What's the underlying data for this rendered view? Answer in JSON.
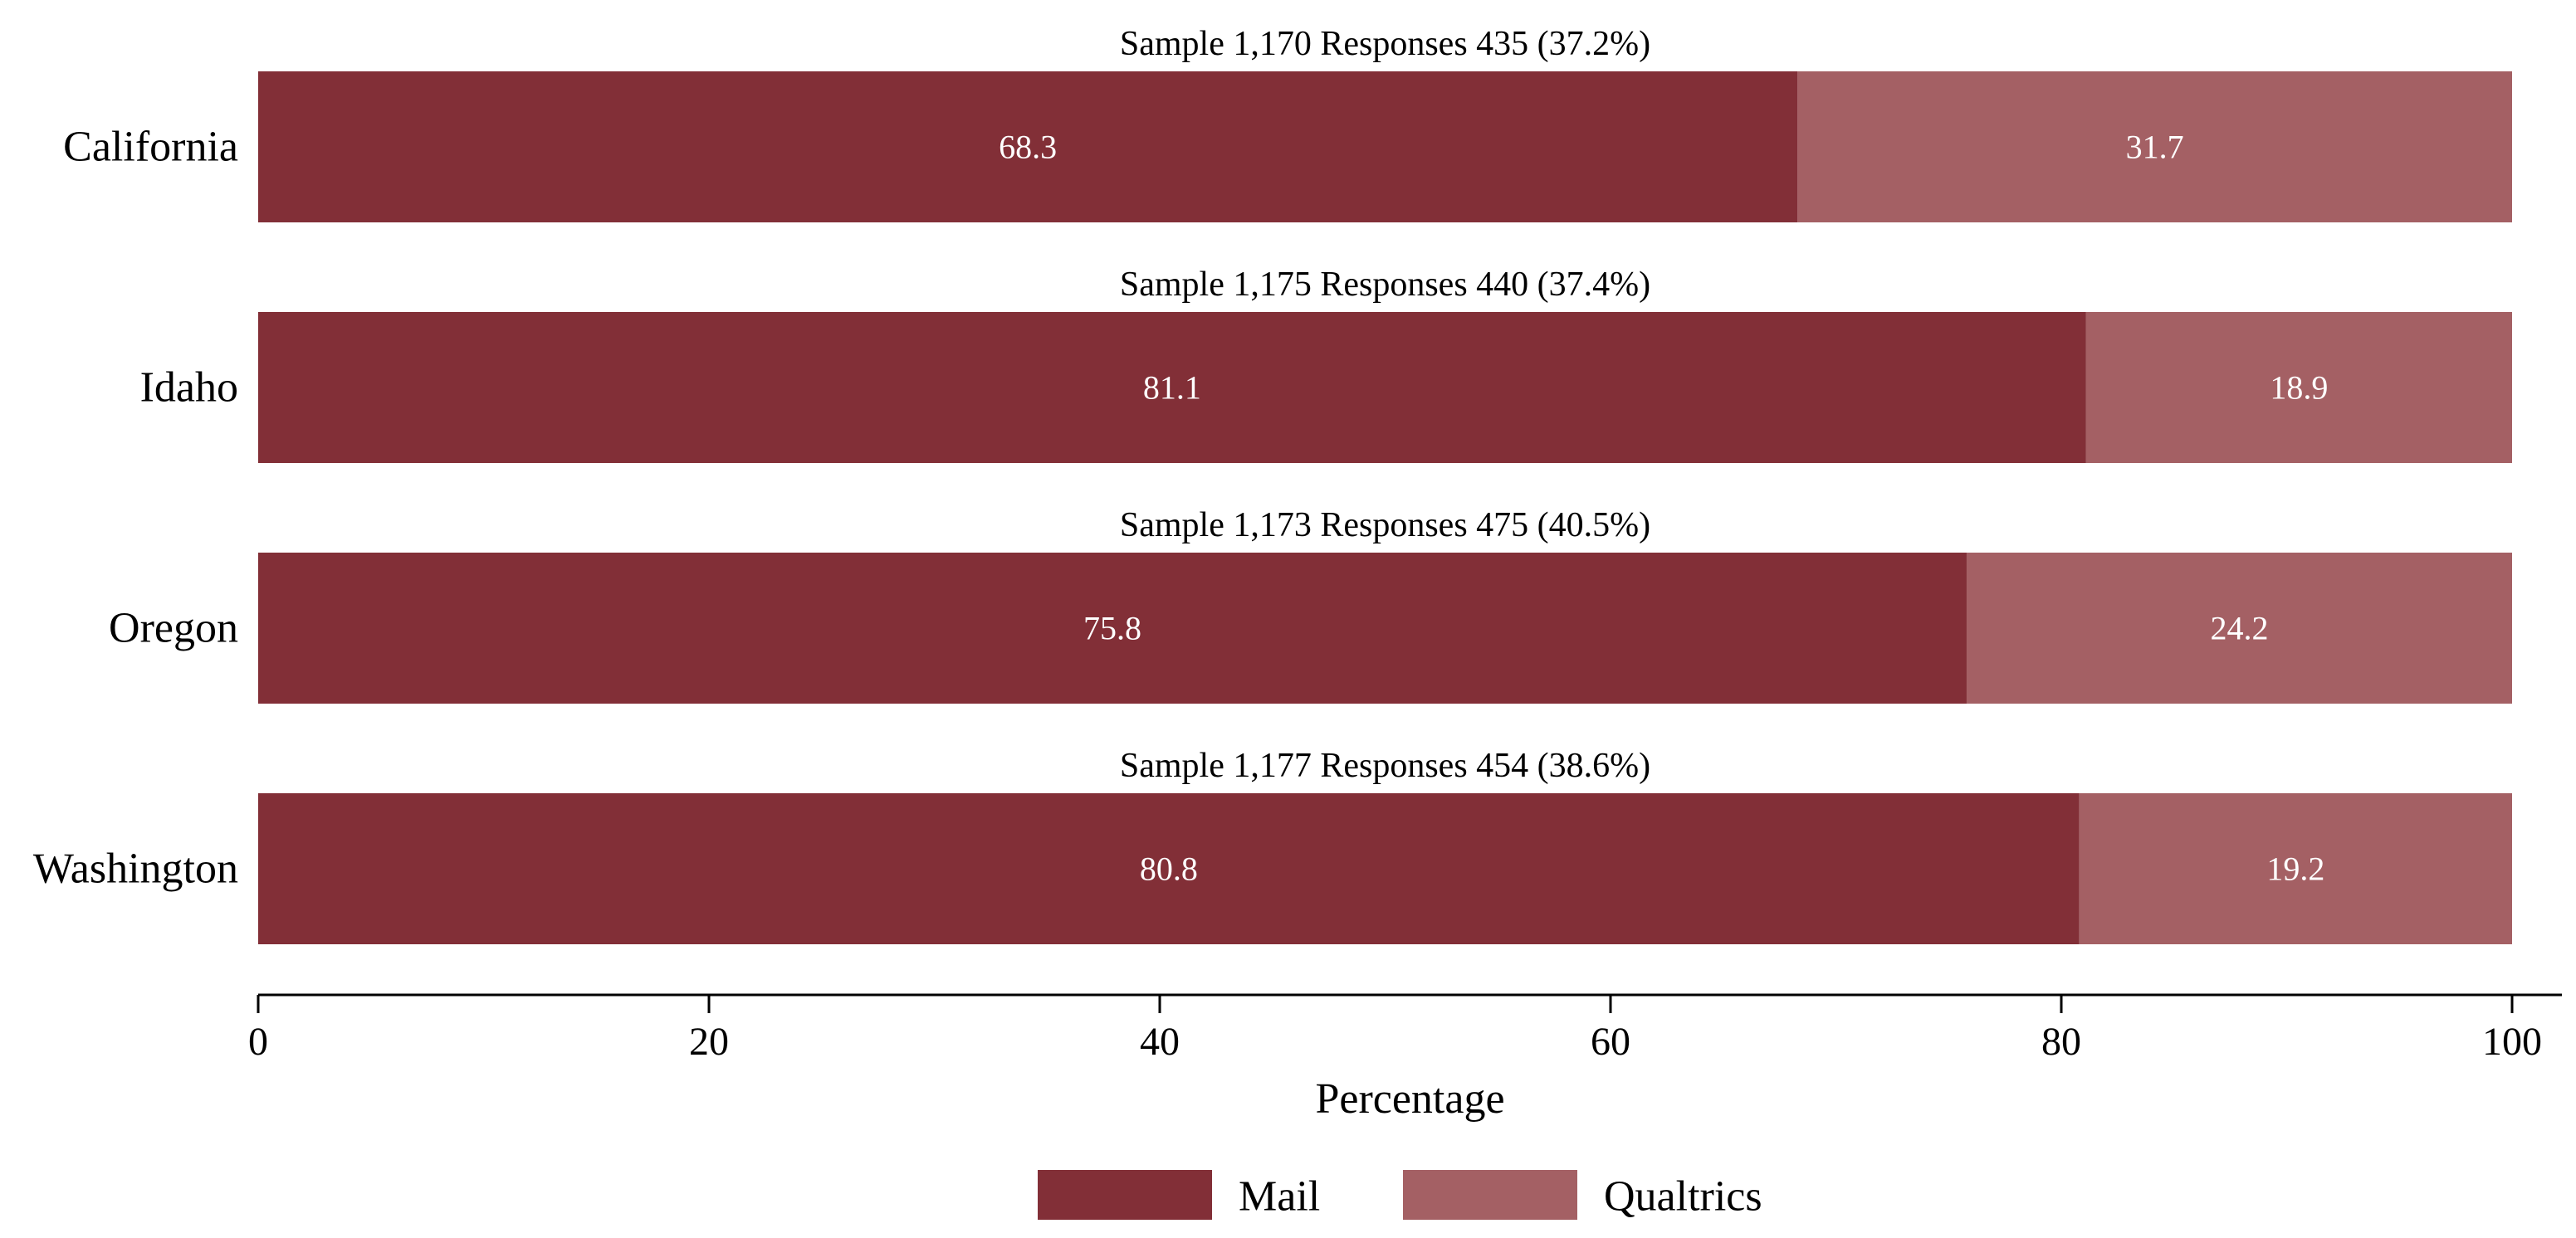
{
  "chart_data": {
    "type": "bar",
    "orientation": "horizontal",
    "stacked": true,
    "categories": [
      "California",
      "Idaho",
      "Oregon",
      "Washington"
    ],
    "series": [
      {
        "name": "Mail",
        "values": [
          68.3,
          81.1,
          75.8,
          80.8
        ],
        "color": "#822f37"
      },
      {
        "name": "Qualtrics",
        "values": [
          31.7,
          18.9,
          24.2,
          19.2
        ],
        "color": "#a46064"
      }
    ],
    "bar_annotations": [
      "Sample 1,170 Responses 435 (37.2%)",
      "Sample 1,175 Responses 440 (37.4%)",
      "Sample 1,173 Responses 475 (40.5%)",
      "Sample 1,177 Responses 454 (38.6%)"
    ],
    "data_labels": [
      [
        "68.3",
        "81.1",
        "75.8",
        "80.8"
      ],
      [
        "31.7",
        "18.9",
        "24.2",
        "19.2"
      ]
    ],
    "xlabel": "Percentage",
    "ylabel": "",
    "xlim": [
      0,
      100
    ],
    "xticks": [
      0,
      20,
      40,
      60,
      80,
      100
    ],
    "xtick_labels": [
      "0",
      "20",
      "40",
      "60",
      "80",
      "100"
    ],
    "grid": false,
    "legend": {
      "position": "bottom",
      "entries": [
        "Mail",
        "Qualtrics"
      ]
    },
    "label_color": "#ffffff",
    "text_color": "#000000"
  }
}
